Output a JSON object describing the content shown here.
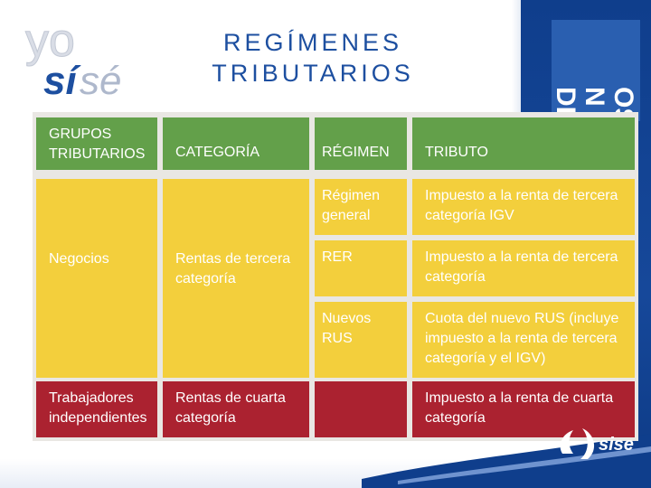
{
  "brand": {
    "logo_line1": "yo",
    "logo_line2a": "sí",
    "logo_line2b": "sé",
    "footer_logo": "sise",
    "side_text_1": "DE",
    "side_text_2": "N &",
    "side_text_3": "OS"
  },
  "title": {
    "line1": "REGÍMENES",
    "line2": "TRIBUTARIOS"
  },
  "table": {
    "headers": [
      "GRUPOS TRIBUTARIOS",
      "CATEGORÍA",
      "RÉGIMEN",
      "TRIBUTO"
    ],
    "negocios": {
      "grupo": "Negocios",
      "categoria": "Rentas de tercera categoría",
      "rows": [
        {
          "regimen": "Régimen general",
          "tributo": "Impuesto a la renta de tercera categoría IGV"
        },
        {
          "regimen": "RER",
          "tributo": "Impuesto a la renta de tercera categoría"
        },
        {
          "regimen": "Nuevos RUS",
          "tributo": "Cuota del nuevo RUS (incluye impuesto a la renta de tercera categoría y el IGV)"
        }
      ]
    },
    "independientes": {
      "grupo": "Trabajadores independientes",
      "categoria": "Rentas de cuarta categoría",
      "regimen": "",
      "tributo": "Impuesto a la renta de cuarta categoría"
    }
  },
  "colors": {
    "header_green": "#63a04a",
    "body_yellow": "#f3cf3c",
    "row_red": "#ab2230",
    "title_blue": "#1d4fa0",
    "side_blue": "#0f3e8c"
  }
}
